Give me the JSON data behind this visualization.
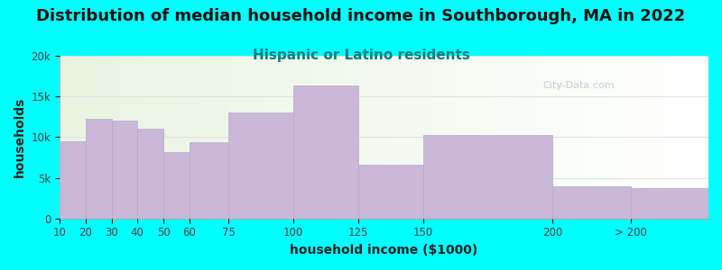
{
  "title": "Distribution of median household income in Southborough, MA in 2022",
  "subtitle": "Hispanic or Latino residents",
  "xlabel": "household income ($1000)",
  "ylabel": "households",
  "background_color": "#00ffff",
  "plot_bg_left": "#e8f5e0",
  "plot_bg_right": "#ffffff",
  "bar_color": "#c9b8d8",
  "bar_edge_color": "#b8a8cc",
  "bin_lefts": [
    10,
    20,
    30,
    40,
    50,
    60,
    75,
    100,
    125,
    150,
    200,
    230
  ],
  "bin_rights": [
    20,
    30,
    40,
    50,
    60,
    75,
    100,
    125,
    150,
    200,
    230,
    260
  ],
  "bin_labels": [
    "10",
    "20",
    "30",
    "40",
    "50",
    "60",
    "75",
    "100",
    "125",
    "150",
    "200",
    "> 200"
  ],
  "values": [
    9500,
    12300,
    12000,
    11000,
    8200,
    9400,
    13000,
    16400,
    6600,
    10300,
    4000,
    3700
  ],
  "ylim": [
    0,
    20000
  ],
  "yticks": [
    0,
    5000,
    10000,
    15000,
    20000
  ],
  "ytick_labels": [
    "0",
    "5k",
    "10k",
    "15k",
    "20k"
  ],
  "title_fontsize": 13,
  "subtitle_fontsize": 11,
  "subtitle_color": "#008080",
  "axis_label_fontsize": 10,
  "tick_fontsize": 8.5,
  "watermark_text": "City-Data.com",
  "watermark_color": "#b0c0c8"
}
